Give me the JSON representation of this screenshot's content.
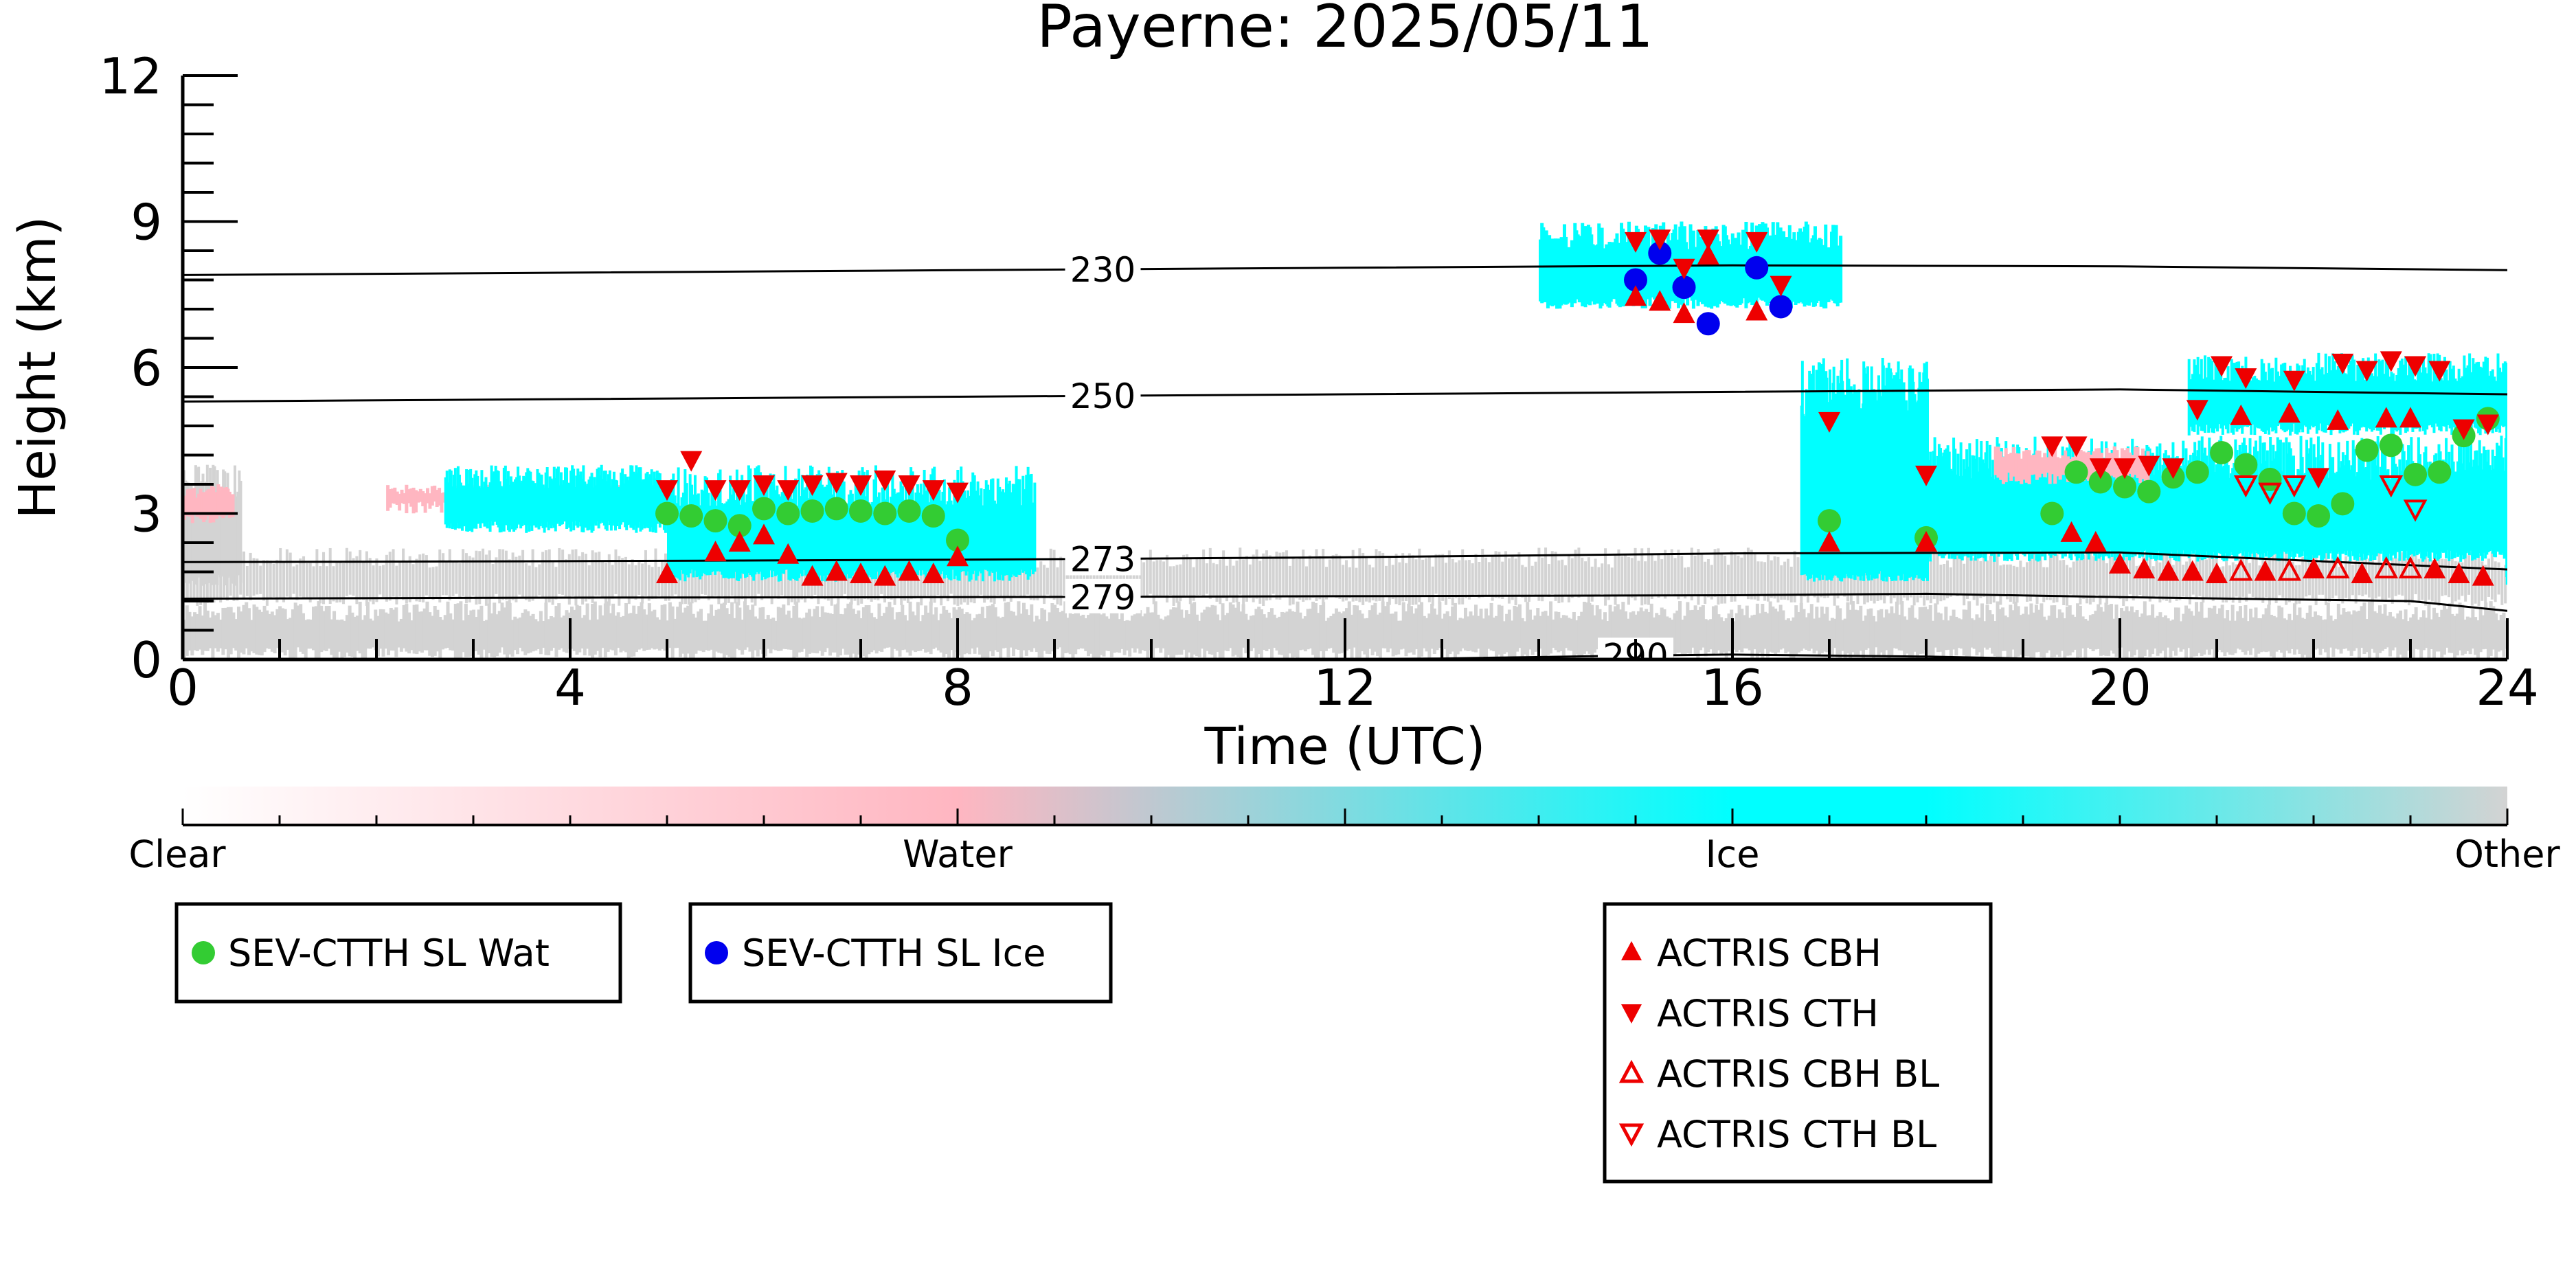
{
  "chart_data": {
    "type": "scatter",
    "title": "Payerne: 2025/05/11",
    "xlabel": "Time (UTC)",
    "ylabel": "Height (km)",
    "xlim": [
      0,
      24
    ],
    "ylim": [
      0,
      12
    ],
    "x_ticks": [
      0,
      4,
      8,
      12,
      16,
      20,
      24
    ],
    "y_ticks": [
      0,
      3,
      6,
      9,
      12
    ],
    "colorbar": {
      "labels": [
        "Clear",
        "Water",
        "Ice",
        "Other"
      ],
      "colors": [
        "#ffffff",
        "#ffb6c1",
        "#00ffff",
        "#d3d3d3"
      ]
    },
    "isotherms": [
      {
        "label": "230",
        "label_x": 9.5,
        "points": [
          [
            0,
            7.9
          ],
          [
            4,
            7.95
          ],
          [
            8,
            8.0
          ],
          [
            12,
            8.05
          ],
          [
            16,
            8.1
          ],
          [
            20,
            8.08
          ],
          [
            24,
            8.0
          ]
        ]
      },
      {
        "label": "250",
        "label_x": 9.5,
        "points": [
          [
            0,
            5.3
          ],
          [
            4,
            5.35
          ],
          [
            8,
            5.4
          ],
          [
            12,
            5.45
          ],
          [
            16,
            5.5
          ],
          [
            20,
            5.55
          ],
          [
            24,
            5.45
          ]
        ]
      },
      {
        "label": "273",
        "label_x": 9.5,
        "points": [
          [
            0,
            2.0
          ],
          [
            4,
            2.02
          ],
          [
            8,
            2.05
          ],
          [
            12,
            2.1
          ],
          [
            16,
            2.18
          ],
          [
            20,
            2.2
          ],
          [
            24,
            1.85
          ]
        ]
      },
      {
        "label": "279",
        "label_x": 9.5,
        "points": [
          [
            0,
            1.25
          ],
          [
            4,
            1.27
          ],
          [
            8,
            1.28
          ],
          [
            12,
            1.3
          ],
          [
            16,
            1.32
          ],
          [
            18,
            1.35
          ],
          [
            20,
            1.28
          ],
          [
            23,
            1.2
          ],
          [
            24,
            1.0
          ]
        ]
      },
      {
        "label": "290",
        "label_x": 15.0,
        "points": [
          [
            11.5,
            0.0
          ],
          [
            13,
            0.02
          ],
          [
            15,
            0.08
          ],
          [
            16,
            0.1
          ],
          [
            18,
            0.06
          ],
          [
            19.5,
            0.0
          ]
        ]
      }
    ],
    "series": [
      {
        "name": "SEV-CTTH SL Wat",
        "color": "#33cc33",
        "marker": "circle",
        "points": [
          [
            5.0,
            3.0
          ],
          [
            5.25,
            2.95
          ],
          [
            5.5,
            2.85
          ],
          [
            5.75,
            2.75
          ],
          [
            6.0,
            3.1
          ],
          [
            6.25,
            3.0
          ],
          [
            6.5,
            3.05
          ],
          [
            6.75,
            3.1
          ],
          [
            7.0,
            3.05
          ],
          [
            7.25,
            3.0
          ],
          [
            7.5,
            3.05
          ],
          [
            7.75,
            2.95
          ],
          [
            8.0,
            2.45
          ],
          [
            17.0,
            2.85
          ],
          [
            18.0,
            2.5
          ],
          [
            19.3,
            3.0
          ],
          [
            19.55,
            3.85
          ],
          [
            19.8,
            3.65
          ],
          [
            20.05,
            3.55
          ],
          [
            20.3,
            3.45
          ],
          [
            20.55,
            3.75
          ],
          [
            20.8,
            3.85
          ],
          [
            21.05,
            4.25
          ],
          [
            21.3,
            4.0
          ],
          [
            21.55,
            3.7
          ],
          [
            21.8,
            3.0
          ],
          [
            22.05,
            2.95
          ],
          [
            22.3,
            3.2
          ],
          [
            22.55,
            4.3
          ],
          [
            22.8,
            4.4
          ],
          [
            23.05,
            3.8
          ],
          [
            23.3,
            3.85
          ],
          [
            23.55,
            4.6
          ],
          [
            23.8,
            4.95
          ]
        ]
      },
      {
        "name": "SEV-CTTH SL Ice",
        "color": "#0000ee",
        "marker": "circle",
        "points": [
          [
            15.0,
            7.8
          ],
          [
            15.25,
            8.35
          ],
          [
            15.5,
            7.65
          ],
          [
            15.75,
            6.9
          ],
          [
            16.25,
            8.05
          ],
          [
            16.5,
            7.25
          ]
        ]
      },
      {
        "name": "ACTRIS CBH",
        "color": "#ee0000",
        "marker": "triangle-up",
        "points": [
          [
            5.0,
            1.75
          ],
          [
            5.5,
            2.2
          ],
          [
            5.75,
            2.4
          ],
          [
            6.0,
            2.55
          ],
          [
            6.25,
            2.15
          ],
          [
            6.5,
            1.7
          ],
          [
            6.75,
            1.8
          ],
          [
            7.0,
            1.75
          ],
          [
            7.25,
            1.7
          ],
          [
            7.5,
            1.8
          ],
          [
            7.75,
            1.75
          ],
          [
            8.0,
            2.1
          ],
          [
            15.0,
            7.45
          ],
          [
            15.25,
            7.35
          ],
          [
            15.5,
            7.1
          ],
          [
            15.75,
            8.3
          ],
          [
            16.25,
            7.15
          ],
          [
            17.0,
            2.4
          ],
          [
            18.0,
            2.4
          ],
          [
            19.5,
            2.6
          ],
          [
            19.75,
            2.4
          ],
          [
            20.0,
            1.95
          ],
          [
            20.25,
            1.85
          ],
          [
            20.5,
            1.8
          ],
          [
            20.75,
            1.8
          ],
          [
            21.0,
            1.75
          ],
          [
            21.25,
            5.0
          ],
          [
            21.5,
            1.8
          ],
          [
            21.75,
            5.05
          ],
          [
            22.0,
            1.85
          ],
          [
            22.25,
            4.9
          ],
          [
            22.5,
            1.75
          ],
          [
            22.75,
            4.95
          ],
          [
            23.0,
            4.95
          ],
          [
            23.25,
            1.85
          ],
          [
            23.5,
            1.75
          ],
          [
            23.75,
            1.7
          ]
        ]
      },
      {
        "name": "ACTRIS CTH",
        "color": "#ee0000",
        "marker": "triangle-down",
        "points": [
          [
            5.0,
            3.5
          ],
          [
            5.25,
            4.1
          ],
          [
            5.5,
            3.5
          ],
          [
            5.75,
            3.5
          ],
          [
            6.0,
            3.6
          ],
          [
            6.25,
            3.5
          ],
          [
            6.5,
            3.6
          ],
          [
            6.75,
            3.65
          ],
          [
            7.0,
            3.6
          ],
          [
            7.25,
            3.7
          ],
          [
            7.5,
            3.6
          ],
          [
            7.75,
            3.5
          ],
          [
            8.0,
            3.45
          ],
          [
            15.0,
            8.6
          ],
          [
            15.25,
            8.65
          ],
          [
            15.5,
            8.05
          ],
          [
            15.75,
            8.65
          ],
          [
            16.25,
            8.6
          ],
          [
            16.5,
            7.7
          ],
          [
            17.0,
            4.9
          ],
          [
            18.0,
            3.8
          ],
          [
            19.3,
            4.4
          ],
          [
            19.55,
            4.4
          ],
          [
            19.8,
            3.95
          ],
          [
            20.05,
            3.95
          ],
          [
            20.3,
            4.0
          ],
          [
            20.55,
            3.95
          ],
          [
            20.8,
            5.15
          ],
          [
            21.05,
            6.05
          ],
          [
            21.3,
            5.8
          ],
          [
            21.8,
            5.75
          ],
          [
            22.05,
            3.75
          ],
          [
            22.3,
            6.1
          ],
          [
            22.55,
            5.95
          ],
          [
            22.8,
            6.15
          ],
          [
            23.05,
            6.05
          ],
          [
            23.3,
            5.95
          ],
          [
            23.55,
            4.75
          ],
          [
            23.8,
            4.85
          ]
        ]
      },
      {
        "name": "ACTRIS CBH BL",
        "color": "#ee0000",
        "marker": "triangle-up-open",
        "points": [
          [
            21.25,
            1.8
          ],
          [
            21.75,
            1.8
          ],
          [
            22.25,
            1.85
          ],
          [
            22.75,
            1.85
          ],
          [
            23.0,
            1.85
          ]
        ]
      },
      {
        "name": "ACTRIS CTH BL",
        "color": "#ee0000",
        "marker": "triangle-down-open",
        "points": [
          [
            21.3,
            3.6
          ],
          [
            21.55,
            3.45
          ],
          [
            21.8,
            3.6
          ],
          [
            22.8,
            3.6
          ],
          [
            23.05,
            3.1
          ]
        ]
      }
    ],
    "legend": {
      "placement": "below-chart",
      "boxes": [
        [
          "SEV-CTTH SL Wat"
        ],
        [
          "SEV-CTTH SL Ice"
        ],
        [
          "ACTRIS CBH",
          "ACTRIS CTH",
          "ACTRIS CBH BL",
          "ACTRIS CTH BL"
        ]
      ]
    }
  }
}
